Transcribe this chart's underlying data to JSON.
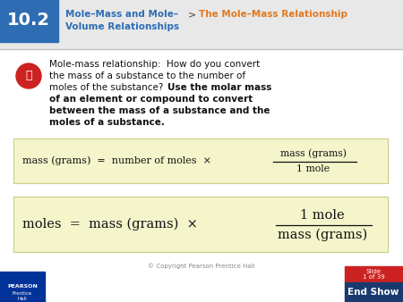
{
  "bg_color": "#ffffff",
  "blue_box_color": "#2e6db4",
  "blue_box_number": "10.2",
  "header_text1": "Mole–Mass and Mole–",
  "header_text2": "Volume Relationships",
  "header_arrow": ">",
  "header_sub": "The Mole–Mass Relationship",
  "key_color": "#cc2222",
  "formula1_box_color": "#f5f5cc",
  "formula1_left": "mass (grams)  =  number of moles  ×",
  "formula1_num": "mass (grams)",
  "formula1_den": "1 mole",
  "formula2_box_color": "#f5f5cc",
  "formula2_left": "moles  =  mass (grams)  ×",
  "formula2_num": "1 mole",
  "formula2_den": "mass (grams)",
  "footer_copyright": "© Copyright Pearson Prentice Hall",
  "slide_text": "Slide\n1 of 39",
  "endshow_text": "End Show",
  "endshow_bg": "#1a3a6e",
  "slide_label_bg": "#cc2222",
  "pearson_bg": "#003399",
  "header_bg": "#e8e8e8",
  "red_dark": "#8b1a1a",
  "red_mid": "#b52020",
  "header_blue": "#2e6db4",
  "orange_text": "#e07820",
  "body_text": "#111111"
}
